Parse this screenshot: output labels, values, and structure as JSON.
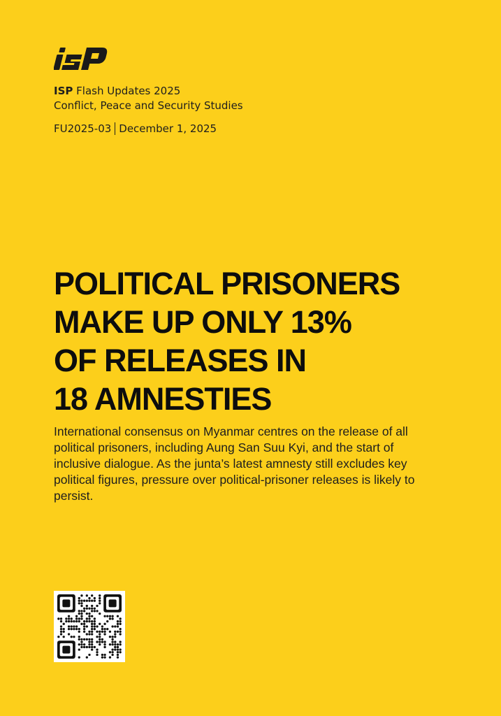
{
  "logo": {
    "text": "iSP",
    "icon": "isp-logo"
  },
  "header": {
    "series_brand": "ISP",
    "series_rest": " Flash Updates 2025",
    "program": "Conflict, Peace and Security Studies"
  },
  "meta": {
    "code": "FU2025-03",
    "date": "December 1, 2025"
  },
  "title_lines": [
    "POLITICAL PRISONERS",
    "MAKE UP ONLY 13%",
    "OF RELEASES IN",
    "18 AMNESTIES"
  ],
  "summary": "International consensus on Myanmar centres on the release of all political prisoners, including Aung San Suu Kyi, and the start of inclusive dialogue. As the junta’s latest amnesty still excludes key political figures, pressure over political-prisoner releases is likely to persist.",
  "qr": {
    "icon": "qr-code"
  },
  "colors": {
    "background": "#FCCF1B",
    "text": "#1a1a1a"
  }
}
